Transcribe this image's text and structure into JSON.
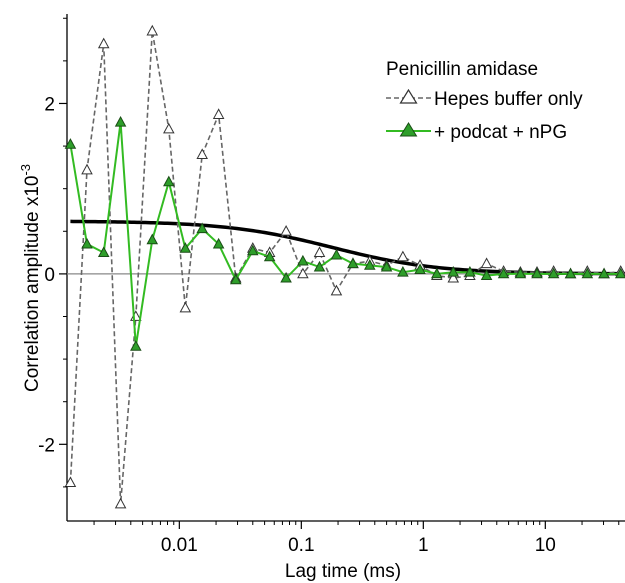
{
  "chart_data": {
    "type": "line",
    "title": "",
    "xlabel": "Lag time (ms)",
    "ylabel": "Correlation amplitude x10",
    "ylabel_exponent": "-3",
    "x_scale": "log",
    "xlim": [
      0.0012,
      45
    ],
    "ylim": [
      -2.9,
      3.05
    ],
    "x_ticks": [
      0.01,
      0.1,
      1,
      10
    ],
    "x_tick_labels": [
      "0.01",
      "0.1",
      "1",
      "10"
    ],
    "y_ticks": [
      -2,
      0,
      2
    ],
    "y_tick_labels": [
      "-2",
      "0",
      "2"
    ],
    "grid": false,
    "zero_line": true,
    "legend": {
      "title": "Penicillin amidase",
      "position": "top-right"
    },
    "colors": {
      "hepes": "#666666",
      "podcat": "#33bb22",
      "podcat_marker": "#2e9e2a",
      "fit": "#000000",
      "zero": "#888888"
    },
    "series": [
      {
        "name": "Hepes buffer only",
        "style": "dashed",
        "marker": "open-triangle",
        "x": [
          0.00128,
          0.00175,
          0.0024,
          0.0033,
          0.0044,
          0.006,
          0.0082,
          0.0112,
          0.0154,
          0.021,
          0.029,
          0.04,
          0.055,
          0.075,
          0.103,
          0.141,
          0.194,
          0.265,
          0.364,
          0.5,
          0.68,
          0.94,
          1.29,
          1.76,
          2.41,
          3.3,
          4.55,
          6.25,
          8.55,
          11.7,
          16.1,
          22.1,
          30.3,
          41.5
        ],
        "y": [
          -2.45,
          1.22,
          2.7,
          -2.7,
          -0.5,
          2.85,
          1.7,
          -0.4,
          1.4,
          1.87,
          -0.05,
          0.3,
          0.25,
          0.5,
          0.0,
          0.25,
          -0.2,
          0.12,
          0.15,
          0.1,
          0.2,
          0.1,
          -0.02,
          -0.05,
          -0.02,
          0.12,
          0.03,
          0.02,
          0.02,
          0.03,
          0.0,
          0.03,
          0.0,
          0.03
        ]
      },
      {
        "name": "+ podcat + nPG",
        "style": "solid",
        "marker": "filled-triangle",
        "x": [
          0.00128,
          0.00175,
          0.0024,
          0.0033,
          0.0044,
          0.006,
          0.0082,
          0.0112,
          0.0154,
          0.021,
          0.029,
          0.04,
          0.055,
          0.075,
          0.103,
          0.141,
          0.194,
          0.265,
          0.364,
          0.5,
          0.68,
          0.94,
          1.29,
          1.76,
          2.41,
          3.3,
          4.55,
          6.25,
          8.55,
          11.7,
          16.1,
          22.1,
          30.3,
          41.5
        ],
        "y": [
          1.52,
          0.35,
          0.25,
          1.78,
          -0.85,
          0.4,
          1.08,
          0.3,
          0.53,
          0.35,
          -0.07,
          0.27,
          0.2,
          -0.05,
          0.15,
          0.08,
          0.22,
          0.12,
          0.1,
          0.08,
          0.02,
          0.05,
          0.0,
          0.02,
          0.02,
          -0.02,
          0.0,
          0.0,
          0.0,
          0.0,
          0.0,
          0.0,
          0.0,
          0.0
        ]
      },
      {
        "name": "",
        "style": "thick-solid",
        "marker": "none",
        "amplitude": 0.62,
        "tau_ms": 0.18,
        "x_start": 0.00128,
        "x_end": 45
      }
    ]
  }
}
